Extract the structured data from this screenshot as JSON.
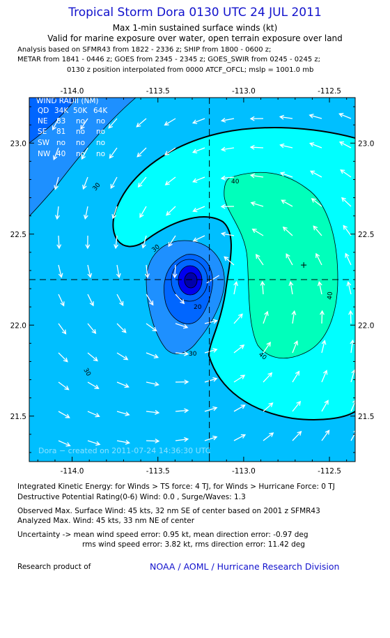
{
  "header": {
    "title": "Tropical Storm Dora 0130 UTC 24 JUL 2011",
    "subtitle1": "Max 1-min sustained surface winds (kt)",
    "subtitle2": "Valid for marine exposure over water, open terrain exposure over land",
    "meta_lines": [
      "Analysis based on SFMR43 from 1822 - 2336 z; SHIP from 1800 - 0600 z;",
      "METAR from 1841 - 0446 z; GOES from 2345 - 2345 z; GOES_SWIR from 0245 - 0245 z;",
      "0130 z position interpolated from 0000 ATCF_OFCL; mslp = 1001.0 mb"
    ]
  },
  "map": {
    "lon_ticks": [
      "-114.0",
      "-113.5",
      "-113.0",
      "-112.5"
    ],
    "lat_ticks": [
      "23.0",
      "22.5",
      "22.0",
      "21.5"
    ],
    "lon_range": [
      -114.25,
      -112.35
    ],
    "lat_range": [
      21.25,
      23.25
    ],
    "center": {
      "lon": -113.2,
      "lat": 22.25
    },
    "max_wind_marker": {
      "lon": -112.65,
      "lat": 22.33
    },
    "contour_labels": [
      "30",
      "30",
      "30",
      "20",
      "30",
      "40",
      "40",
      "40"
    ],
    "credit": "Dora − created on 2011-07-24 14:36:30 UTC",
    "colors": {
      "band_lt10": "#0000ee",
      "band_10_20": "#0066ff",
      "band_20_30": "#1e90ff",
      "band_30_34": "#00bfff",
      "band_34_40": "#00ffff",
      "band_40_50": "#00ffbb",
      "arrow": "#ffffff"
    }
  },
  "wind_radii": {
    "title": "WIND RADII (NM)",
    "headers": [
      "QD",
      "34K",
      "50K",
      "64K"
    ],
    "rows": [
      [
        "NE",
        "83",
        "no",
        "no"
      ],
      [
        "SE",
        "81",
        "no",
        "no"
      ],
      [
        "SW",
        "no",
        "no",
        "no"
      ],
      [
        "NW",
        "40",
        "no",
        "no"
      ]
    ]
  },
  "footer": {
    "ike": "Integrated Kinetic Energy:  for Winds > TS force: 4 TJ,  for Winds > Hurricane Force: 0 TJ",
    "dpr": "Destructive Potential Rating(0-6)   Wind: 0.0 , Surge/Waves: 1.3",
    "obs": "Observed Max. Surface Wind: 45 kts, 32 nm SE of center based on 2001 z SFMR43",
    "analyzed": "Analyzed Max. Wind: 45 kts, 33 nm NE of center",
    "uncert1": "Uncertainty -> mean wind speed error: 0.95 kt,   mean direction error:  -0.97 deg",
    "uncert2": "rms wind speed error: 3.82 kt,   rms direction error: 11.42 deg",
    "research": "Research product of",
    "org": "NOAA / AOML / Hurricane Research Division"
  }
}
